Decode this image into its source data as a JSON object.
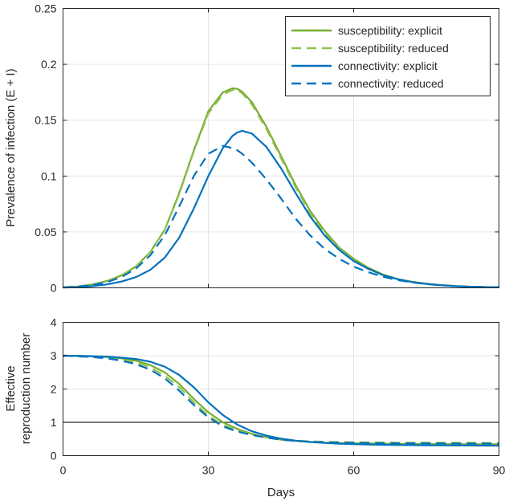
{
  "chart_data": [
    {
      "type": "line",
      "ylabel": "Prevalence of infection (E + I)",
      "xlim": [
        0,
        90
      ],
      "ylim": [
        0,
        0.25
      ],
      "x_ticks": [
        "0",
        "30",
        "60",
        "90"
      ],
      "y_ticks": [
        {
          "value": 0,
          "label": "0"
        },
        {
          "value": 0.05,
          "label": "0.05"
        },
        {
          "value": 0.1,
          "label": "0.1"
        },
        {
          "value": 0.15,
          "label": "0.15"
        },
        {
          "value": 0.2,
          "label": "0.2"
        },
        {
          "value": 0.25,
          "label": "0.25"
        }
      ],
      "grid": true,
      "legend_position": "top-right",
      "x": [
        0,
        3,
        6,
        9,
        12,
        15,
        18,
        21,
        24,
        27,
        30,
        33,
        35,
        36,
        37,
        39,
        42,
        45,
        48,
        51,
        54,
        57,
        60,
        63,
        66,
        69,
        72,
        75,
        78,
        81,
        84,
        87,
        90
      ],
      "series": [
        {
          "name": "susceptibility: explicit",
          "color": "#77ac30",
          "dash": "solid",
          "values": [
            0.0005,
            0.0012,
            0.003,
            0.006,
            0.011,
            0.019,
            0.032,
            0.052,
            0.085,
            0.123,
            0.158,
            0.175,
            0.1785,
            0.178,
            0.1755,
            0.166,
            0.144,
            0.118,
            0.092,
            0.069,
            0.051,
            0.036,
            0.026,
            0.018,
            0.012,
            0.008,
            0.0055,
            0.0037,
            0.0025,
            0.0016,
            0.001,
            0.0007,
            0.0005
          ]
        },
        {
          "name": "susceptibility: reduced",
          "color": "#8fc24e",
          "dash": "dashed",
          "values": [
            0.0005,
            0.0012,
            0.003,
            0.006,
            0.011,
            0.019,
            0.032,
            0.052,
            0.084,
            0.122,
            0.156,
            0.173,
            0.177,
            0.177,
            0.174,
            0.164,
            0.142,
            0.116,
            0.09,
            0.067,
            0.049,
            0.035,
            0.025,
            0.017,
            0.0115,
            0.0078,
            0.0053,
            0.0036,
            0.0024,
            0.0016,
            0.001,
            0.0007,
            0.0005
          ]
        },
        {
          "name": "connectivity: explicit",
          "color": "#0072bd",
          "dash": "solid",
          "values": [
            0.0002,
            0.0006,
            0.0015,
            0.003,
            0.0055,
            0.0095,
            0.016,
            0.027,
            0.045,
            0.071,
            0.1,
            0.125,
            0.136,
            0.139,
            0.1405,
            0.138,
            0.126,
            0.107,
            0.085,
            0.064,
            0.047,
            0.034,
            0.024,
            0.017,
            0.0115,
            0.0078,
            0.0052,
            0.0035,
            0.0023,
            0.0015,
            0.001,
            0.0006,
            0.0004
          ]
        },
        {
          "name": "connectivity: reduced",
          "color": "#0072bd",
          "dash": "dashed",
          "values": [
            0.0004,
            0.001,
            0.0025,
            0.005,
            0.0095,
            0.017,
            0.029,
            0.047,
            0.073,
            0.1,
            0.12,
            0.127,
            0.125,
            0.123,
            0.12,
            0.112,
            0.097,
            0.08,
            0.062,
            0.047,
            0.035,
            0.026,
            0.019,
            0.014,
            0.01,
            0.007,
            0.0049,
            0.0034,
            0.0023,
            0.0016,
            0.0011,
            0.0007,
            0.0005
          ]
        }
      ]
    },
    {
      "type": "line",
      "xlabel": "Days",
      "ylabel_lines": [
        "Effective",
        "reproduction number"
      ],
      "xlim": [
        0,
        90
      ],
      "ylim": [
        0,
        4
      ],
      "x_ticks": [
        "0",
        "30",
        "60",
        "90"
      ],
      "y_ticks": [
        {
          "value": 0,
          "label": "0"
        },
        {
          "value": 1,
          "label": "1"
        },
        {
          "value": 2,
          "label": "2"
        },
        {
          "value": 3,
          "label": "3"
        },
        {
          "value": 4,
          "label": "4"
        }
      ],
      "grid": true,
      "reference_line": 1,
      "x": [
        0,
        3,
        6,
        9,
        12,
        15,
        18,
        21,
        24,
        27,
        30,
        33,
        36,
        39,
        42,
        45,
        48,
        51,
        54,
        57,
        60,
        63,
        66,
        69,
        72,
        75,
        78,
        81,
        84,
        87,
        90
      ],
      "series": [
        {
          "name": "susceptibility: explicit",
          "color": "#77ac30",
          "dash": "solid",
          "values": [
            3,
            2.99,
            2.98,
            2.96,
            2.92,
            2.85,
            2.72,
            2.5,
            2.15,
            1.7,
            1.3,
            1.0,
            0.8,
            0.65,
            0.55,
            0.48,
            0.44,
            0.41,
            0.39,
            0.38,
            0.37,
            0.365,
            0.36,
            0.355,
            0.35,
            0.35,
            0.345,
            0.345,
            0.34,
            0.34,
            0.34
          ]
        },
        {
          "name": "susceptibility: reduced",
          "color": "#8fc24e",
          "dash": "dashed",
          "values": [
            3,
            2.99,
            2.97,
            2.94,
            2.89,
            2.8,
            2.65,
            2.4,
            2.05,
            1.6,
            1.2,
            0.92,
            0.75,
            0.63,
            0.55,
            0.49,
            0.45,
            0.43,
            0.42,
            0.41,
            0.4,
            0.4,
            0.395,
            0.39,
            0.39,
            0.39,
            0.385,
            0.385,
            0.385,
            0.38,
            0.38
          ]
        },
        {
          "name": "connectivity: explicit",
          "color": "#0072bd",
          "dash": "solid",
          "values": [
            3,
            2.995,
            2.985,
            2.97,
            2.94,
            2.9,
            2.82,
            2.67,
            2.42,
            2.05,
            1.6,
            1.22,
            0.93,
            0.73,
            0.6,
            0.51,
            0.45,
            0.41,
            0.38,
            0.36,
            0.345,
            0.335,
            0.325,
            0.32,
            0.315,
            0.31,
            0.31,
            0.305,
            0.305,
            0.3,
            0.3
          ]
        },
        {
          "name": "connectivity: reduced",
          "color": "#0072bd",
          "dash": "dashed",
          "values": [
            3,
            2.98,
            2.96,
            2.92,
            2.85,
            2.75,
            2.58,
            2.32,
            1.95,
            1.52,
            1.15,
            0.88,
            0.72,
            0.62,
            0.54,
            0.48,
            0.44,
            0.42,
            0.4,
            0.39,
            0.385,
            0.38,
            0.375,
            0.37,
            0.37,
            0.37,
            0.37,
            0.365,
            0.365,
            0.365,
            0.36
          ]
        }
      ]
    }
  ]
}
